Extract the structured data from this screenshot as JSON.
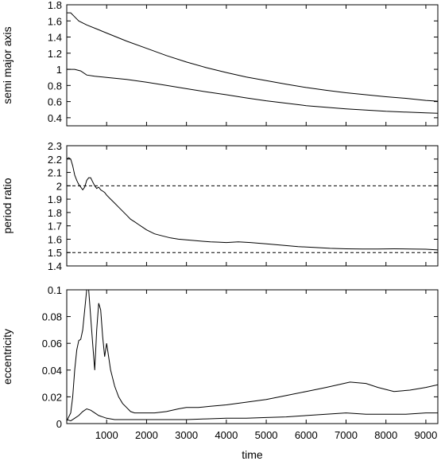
{
  "chart_data": [
    {
      "type": "line",
      "ylabel": "semi major axis",
      "xlim": [
        0,
        9300
      ],
      "ylim": [
        0.3,
        1.8
      ],
      "yticks": [
        0.4,
        0.6,
        0.8,
        1,
        1.2,
        1.4,
        1.6,
        1.8
      ],
      "ytick_labels": [
        "0.4",
        "0.6",
        "0.8",
        "1",
        "1.2",
        "1.4",
        "1.6",
        "1.8"
      ],
      "grid": false,
      "series": [
        {
          "x": [
            0,
            100,
            200,
            300,
            500,
            800,
            1000,
            1500,
            2000,
            2500,
            3000,
            3500,
            4000,
            4500,
            5000,
            5500,
            6000,
            6500,
            7000,
            7500,
            8000,
            8500,
            9000,
            9300
          ],
          "y": [
            1.7,
            1.7,
            1.65,
            1.6,
            1.55,
            1.49,
            1.45,
            1.35,
            1.26,
            1.17,
            1.09,
            1.02,
            0.96,
            0.905,
            0.86,
            0.815,
            0.775,
            0.74,
            0.71,
            0.685,
            0.66,
            0.64,
            0.615,
            0.605
          ],
          "color": "#000000"
        },
        {
          "x": [
            0,
            200,
            350,
            500,
            700,
            1000,
            1500,
            2000,
            2500,
            3000,
            3500,
            4000,
            4500,
            5000,
            5500,
            6000,
            6500,
            7000,
            7500,
            8000,
            8500,
            9000,
            9300
          ],
          "y": [
            1.0,
            1.0,
            0.98,
            0.93,
            0.915,
            0.9,
            0.875,
            0.84,
            0.8,
            0.76,
            0.72,
            0.685,
            0.645,
            0.61,
            0.58,
            0.55,
            0.53,
            0.51,
            0.495,
            0.48,
            0.47,
            0.46,
            0.455
          ],
          "color": "#000000"
        }
      ]
    },
    {
      "type": "line",
      "ylabel": "period ratio",
      "xlim": [
        0,
        9300
      ],
      "ylim": [
        1.4,
        2.3
      ],
      "yticks": [
        1.4,
        1.5,
        1.6,
        1.7,
        1.8,
        1.9,
        2,
        2.1,
        2.2,
        2.3
      ],
      "ytick_labels": [
        "1.4",
        "1.5",
        "1.6",
        "1.7",
        "1.8",
        "1.9",
        "2",
        "2.1",
        "2.2",
        "2.3"
      ],
      "grid": false,
      "reference_lines": [
        2.0,
        1.5
      ],
      "series": [
        {
          "x": [
            0,
            50,
            100,
            150,
            200,
            250,
            300,
            350,
            400,
            450,
            500,
            550,
            600,
            650,
            700,
            750,
            800,
            850,
            900,
            950,
            1000,
            1100,
            1200,
            1300,
            1400,
            1500,
            1600,
            1700,
            1800,
            1900,
            2000,
            2200,
            2400,
            2600,
            2800,
            3000,
            3200,
            3400,
            3600,
            3800,
            4000,
            4300,
            4600,
            5000,
            5400,
            5800,
            6200,
            6600,
            7000,
            7400,
            7800,
            8200,
            8600,
            9000,
            9300
          ],
          "y": [
            2.2,
            2.21,
            2.2,
            2.15,
            2.08,
            2.04,
            2.01,
            1.99,
            1.97,
            1.99,
            2.04,
            2.06,
            2.06,
            2.03,
            2.0,
            1.98,
            1.99,
            1.97,
            1.96,
            1.95,
            1.93,
            1.9,
            1.87,
            1.84,
            1.81,
            1.78,
            1.75,
            1.73,
            1.71,
            1.69,
            1.67,
            1.64,
            1.625,
            1.61,
            1.6,
            1.595,
            1.59,
            1.585,
            1.58,
            1.578,
            1.575,
            1.58,
            1.575,
            1.565,
            1.555,
            1.545,
            1.538,
            1.532,
            1.528,
            1.527,
            1.527,
            1.528,
            1.527,
            1.525,
            1.52
          ],
          "color": "#000000"
        }
      ]
    },
    {
      "type": "line",
      "ylabel": "eccentricity",
      "xlabel": "time",
      "xlim": [
        0,
        9300
      ],
      "ylim": [
        0,
        0.1
      ],
      "xticks": [
        1000,
        2000,
        3000,
        4000,
        5000,
        6000,
        7000,
        8000,
        9000
      ],
      "xtick_labels": [
        "1000",
        "2000",
        "3000",
        "4000",
        "5000",
        "6000",
        "7000",
        "8000",
        "9000"
      ],
      "yticks": [
        0,
        0.02,
        0.04,
        0.06,
        0.08,
        0.1
      ],
      "ytick_labels": [
        "0",
        "0.02",
        "0.04",
        "0.06",
        "0.08",
        "0.1"
      ],
      "grid": false,
      "series": [
        {
          "x": [
            0,
            100,
            150,
            200,
            250,
            300,
            350,
            400,
            450,
            500,
            550,
            600,
            650,
            700,
            750,
            800,
            850,
            900,
            950,
            1000,
            1050,
            1100,
            1200,
            1300,
            1400,
            1500,
            1600,
            1700,
            1800,
            2000,
            2200,
            2500,
            2800,
            3000,
            3300,
            3600,
            4000,
            4500,
            5000,
            5500,
            6000,
            6500,
            6800,
            7100,
            7500,
            7800,
            8200,
            8600,
            9000,
            9300
          ],
          "y": [
            0.002,
            0.008,
            0.02,
            0.04,
            0.055,
            0.062,
            0.063,
            0.07,
            0.085,
            0.1,
            0.1,
            0.08,
            0.06,
            0.04,
            0.07,
            0.09,
            0.085,
            0.065,
            0.05,
            0.06,
            0.05,
            0.04,
            0.028,
            0.02,
            0.015,
            0.012,
            0.009,
            0.008,
            0.008,
            0.008,
            0.008,
            0.009,
            0.011,
            0.012,
            0.012,
            0.013,
            0.014,
            0.016,
            0.018,
            0.021,
            0.024,
            0.027,
            0.029,
            0.031,
            0.03,
            0.027,
            0.024,
            0.025,
            0.027,
            0.029
          ],
          "color": "#000000"
        },
        {
          "x": [
            0,
            100,
            200,
            300,
            400,
            500,
            600,
            700,
            800,
            1000,
            1200,
            1500,
            2000,
            2500,
            3000,
            3500,
            4000,
            4500,
            5000,
            5500,
            6000,
            6500,
            7000,
            7500,
            8000,
            8500,
            9000,
            9300
          ],
          "y": [
            0.003,
            0.002,
            0.004,
            0.006,
            0.009,
            0.011,
            0.01,
            0.008,
            0.006,
            0.004,
            0.003,
            0.003,
            0.003,
            0.003,
            0.003,
            0.0035,
            0.004,
            0.004,
            0.0045,
            0.005,
            0.006,
            0.007,
            0.008,
            0.007,
            0.007,
            0.007,
            0.008,
            0.008
          ],
          "color": "#000000"
        }
      ]
    }
  ]
}
